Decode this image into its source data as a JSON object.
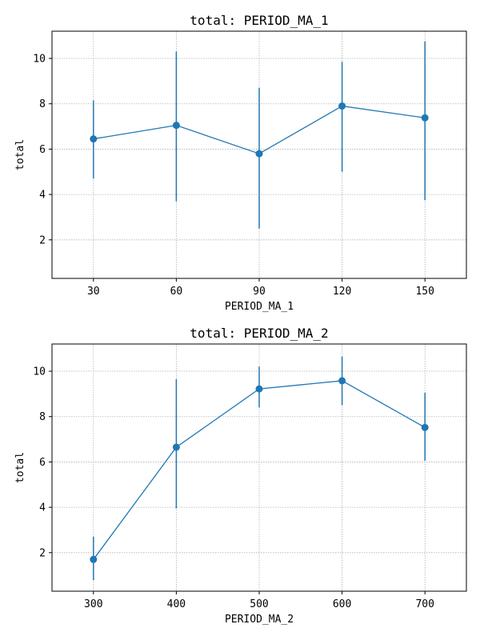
{
  "chart_data": [
    {
      "type": "line",
      "title": "total: PERIOD_MA_1",
      "xlabel": "PERIOD_MA_1",
      "ylabel": "total",
      "x": [
        30,
        60,
        90,
        120,
        150
      ],
      "values": [
        6.45,
        7.05,
        5.8,
        7.9,
        7.38
      ],
      "error_low": [
        4.7,
        3.7,
        2.5,
        5.0,
        3.75
      ],
      "error_high": [
        8.15,
        10.3,
        8.7,
        9.85,
        10.75
      ],
      "xticks": [
        30,
        60,
        90,
        120,
        150
      ],
      "yticks": [
        2,
        4,
        6,
        8,
        10
      ],
      "xlim": [
        15,
        165
      ],
      "ylim": [
        0.3,
        11.2
      ],
      "grid": true,
      "color": "#1f77b4"
    },
    {
      "type": "line",
      "title": "total: PERIOD_MA_2",
      "xlabel": "PERIOD_MA_2",
      "ylabel": "total",
      "x": [
        300,
        400,
        500,
        600,
        700
      ],
      "values": [
        1.7,
        6.65,
        9.22,
        9.58,
        7.52
      ],
      "error_low": [
        0.78,
        3.95,
        8.4,
        8.5,
        6.05
      ],
      "error_high": [
        2.7,
        9.65,
        10.2,
        10.65,
        9.05
      ],
      "xticks": [
        300,
        400,
        500,
        600,
        700
      ],
      "yticks": [
        2,
        4,
        6,
        8,
        10
      ],
      "xlim": [
        250,
        750
      ],
      "ylim": [
        0.3,
        11.2
      ],
      "grid": true,
      "color": "#1f77b4"
    }
  ]
}
